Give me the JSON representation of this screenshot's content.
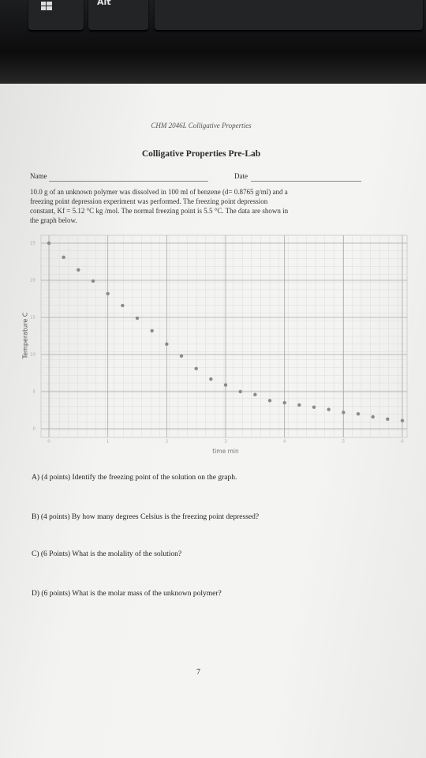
{
  "keyboard": {
    "key_label": "Alt"
  },
  "header": {
    "course": "CHM 2046L Colligative Properties",
    "title": "Colligative Properties Pre-Lab",
    "name_label": "Name",
    "date_label": "Date"
  },
  "problem": {
    "lines": [
      "10.0 g of an unknown polymer was dissolved in 100 ml of benzene (d= 0.8765 g/ml) and a",
      "freezing point depression experiment was performed. The freezing point depression",
      "constant, Kf = 5.12 °C kg /mol. The normal freezing point is 5.5 °C. The data are shown in",
      "the graph below."
    ]
  },
  "chart_data": {
    "type": "scatter",
    "x_label": "time min",
    "y_label": "Temperature C",
    "x": [
      0,
      0.25,
      0.5,
      0.75,
      1,
      1.25,
      1.5,
      1.75,
      2,
      2.25,
      2.5,
      2.75,
      3,
      3.25,
      3.5,
      3.75,
      4,
      4.25,
      4.5,
      4.75,
      5,
      5.25,
      5.5,
      5.75,
      6
    ],
    "values": [
      25,
      23.1,
      21.4,
      19.9,
      18.2,
      16.6,
      14.9,
      13.2,
      11.4,
      9.8,
      8.1,
      6.7,
      5.9,
      5.0,
      4.6,
      3.8,
      3.5,
      3.2,
      2.9,
      2.6,
      2.2,
      2.0,
      1.6,
      1.3,
      1.1
    ],
    "color": "#8a8a8a",
    "xlim": [
      0,
      6
    ],
    "ylim": [
      0,
      25
    ],
    "xticks": [
      0,
      1,
      2,
      3,
      4,
      5,
      6
    ],
    "yticks": [
      0,
      5,
      10,
      15,
      20,
      25
    ],
    "grid": true
  },
  "questions": [
    "A) (4 points) Identify the freezing point of the solution on the graph.",
    "B) (4 points) By how many degrees Celsius is the freezing point depressed?",
    "C) (6 Points) What is the molality of the solution?",
    "D) (6 points) What is the molar mass of the unknown polymer?"
  ],
  "page_number": "7"
}
